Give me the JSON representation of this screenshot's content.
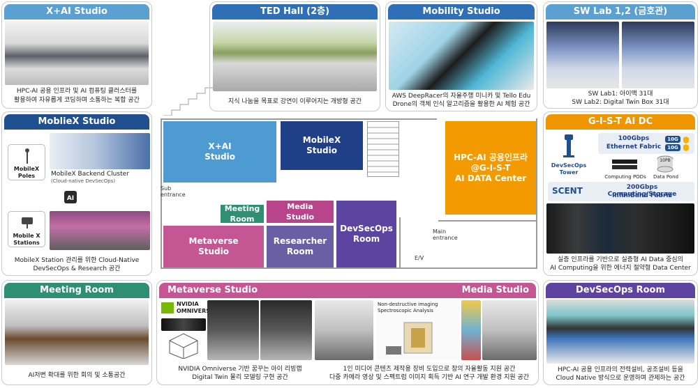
{
  "panels": {
    "xai": {
      "title": "X+AI Studio",
      "caption_1": "HPC-AI 공용 인프라 및 AI 컴퓨팅 클러스터를",
      "caption_2": "활용하여 자유롭게 코딩하며 소통하는 복합 공간"
    },
    "mobilex": {
      "title": "MoblieX Studio",
      "poles_label_1": "MobileX",
      "poles_label_2": "Poles",
      "stations_label_1": "Mobile X",
      "stations_label_2": "Stations",
      "cluster_title": "MobileX Backend Cluster",
      "cluster_sub": "(Cloud-native DevSecOps)",
      "caption_1": "MobileX Station 관리를 위한 Cloud-Native",
      "caption_2": "DevSecOps & Research 공간"
    },
    "meeting": {
      "title": "Meeting Room",
      "caption": "AI저변 확대를 위한 회의 및 소통공간"
    },
    "ted": {
      "title": "TED Hall (2층)",
      "caption": "지식 나눔을 목표로 강연이 이루어지는 개방형 공간"
    },
    "mobility": {
      "title": "Mobility Studio",
      "caption_1": "AWS DeepRacer의 자율주행 미니카 및 Tello Edu",
      "caption_2": "Drone의 객체 인식 알고리즘을 활용한 AI 체험 공간"
    },
    "swlab": {
      "title": "SW Lab 1,2 (금호관)",
      "caption_1": "SW Lab1: 아이맥 31대",
      "caption_2": "SW Lab2: Digital Twin Box 31대"
    },
    "gist": {
      "title": "G-I-S-T AI DC",
      "tower_1": "DevSecOps",
      "tower_2": "Tower",
      "fabric_1": "100Gbps",
      "fabric_2": "Ethernet Fabric",
      "badge": "10G",
      "pods": "Computing PODs",
      "pond": "Data Pond",
      "pond_cap": "10PB",
      "scent": "SCENT",
      "storage_1": "200Gbps Computing/Storage",
      "storage_2": "InfiniBand Fabric",
      "caption_1": "실증 인프라를 기반으로 실증형 AI Data 중심의",
      "caption_2": "AI Computing을 위한 에너지 절약형 Data Center"
    },
    "metaverse": {
      "title": "Metaverse Studio",
      "title_right": "Media Studio",
      "nvidia_1": "NVIDIA",
      "nvidia_2": "OMNIVERSE",
      "imaging_1": "Non-destructive imaging",
      "imaging_2": "Spectroscopic Analysis",
      "caption_left_1": "NVIDIA Omniverse 기반 꿈꾸는 아이 리빙랩",
      "caption_left_2": "Digital Twin 물리 모델링 구현 공간",
      "caption_right_1": "1인 미디어 콘텐츠 제작용 장비 도입으로 창의 자율활동 지원 공간",
      "caption_right_2": "다중 카메라 영상 및 스펙트럼 이미지 획득 기반 AI 연구 개발 환경 지원 공간"
    },
    "devsecops": {
      "title": "DevSecOps Room",
      "caption_1": "HPC-AI 공용 인프라의 전력설비, 공조설비 등을",
      "caption_2": "Cloud Native 방식으로 운영하며 관제하는 공간"
    }
  },
  "floorplan": {
    "rooms": {
      "xai": "X+AI Studio",
      "mobilex": "MobileX Studio",
      "hpc_1": "HPC-AI 공용인프라",
      "hpc_2": "@G-I-S-T",
      "hpc_3": "AI DATA Center",
      "meeting": "Meeting Room",
      "media": "Media Studio",
      "devsecops": "DevSecOps Room",
      "metaverse": "Metaverse Studio",
      "researcher": "Researcher Room"
    },
    "sub_entrance_1": "Sub",
    "sub_entrance_2": "entrance",
    "main_entrance_1": "Main",
    "main_entrance_2": "entrance",
    "ev": "E/V"
  },
  "colors": {
    "xai": "#4d9bd1",
    "mobilex": "#1f3f86",
    "hpc": "#f29a00",
    "meeting": "#2f8f73",
    "media": "#b8448b",
    "devsecops": "#5d44a0",
    "metaverse": "#c45793",
    "researcher": "#6a5fa5"
  }
}
